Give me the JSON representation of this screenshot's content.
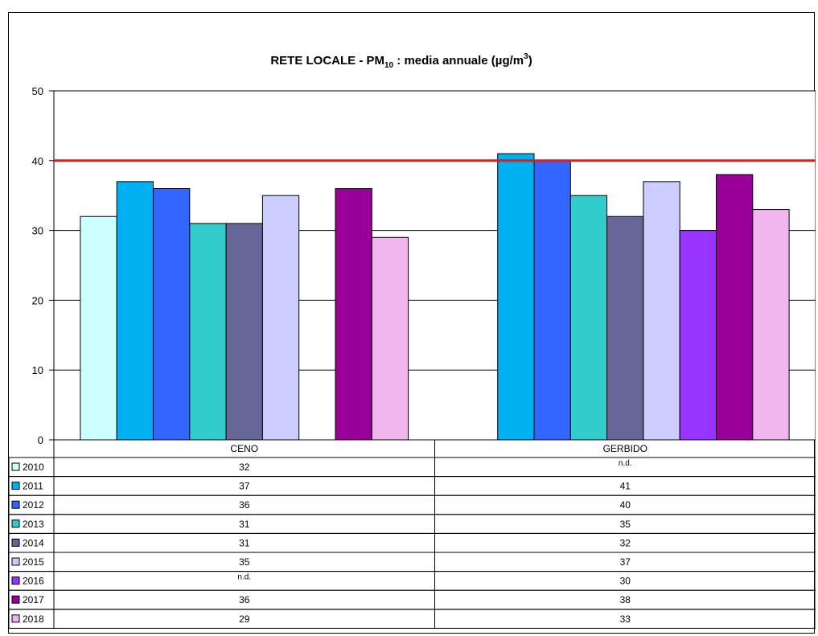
{
  "chart_data": {
    "type": "bar",
    "title_parts": {
      "prefix": "RETE LOCALE - PM",
      "prefix_sub": "10",
      "middle": " : media annuale (µg/m",
      "middle_sup": "3",
      "suffix": ")"
    },
    "categories": [
      "CENO",
      "GERBIDO"
    ],
    "ylim": [
      0,
      50
    ],
    "yticks": [
      "0",
      "10",
      "20",
      "30",
      "40",
      "50"
    ],
    "limit_line": {
      "value": 40,
      "color": "#d42020"
    },
    "missing_label": "n.d.",
    "grid": true,
    "legend": "data-table",
    "series": [
      {
        "name": "2010",
        "color": "#ccffff",
        "values": [
          32,
          null
        ]
      },
      {
        "name": "2011",
        "color": "#00b0f0",
        "values": [
          37,
          41
        ]
      },
      {
        "name": "2012",
        "color": "#3366ff",
        "values": [
          36,
          40
        ]
      },
      {
        "name": "2013",
        "color": "#33cccc",
        "values": [
          31,
          35
        ]
      },
      {
        "name": "2014",
        "color": "#666699",
        "values": [
          31,
          32
        ]
      },
      {
        "name": "2015",
        "color": "#ccccff",
        "values": [
          35,
          37
        ]
      },
      {
        "name": "2016",
        "color": "#9933ff",
        "values": [
          null,
          30
        ]
      },
      {
        "name": "2017",
        "color": "#990099",
        "values": [
          36,
          38
        ]
      },
      {
        "name": "2018",
        "color": "#f1b5ee",
        "values": [
          29,
          33
        ]
      }
    ]
  }
}
